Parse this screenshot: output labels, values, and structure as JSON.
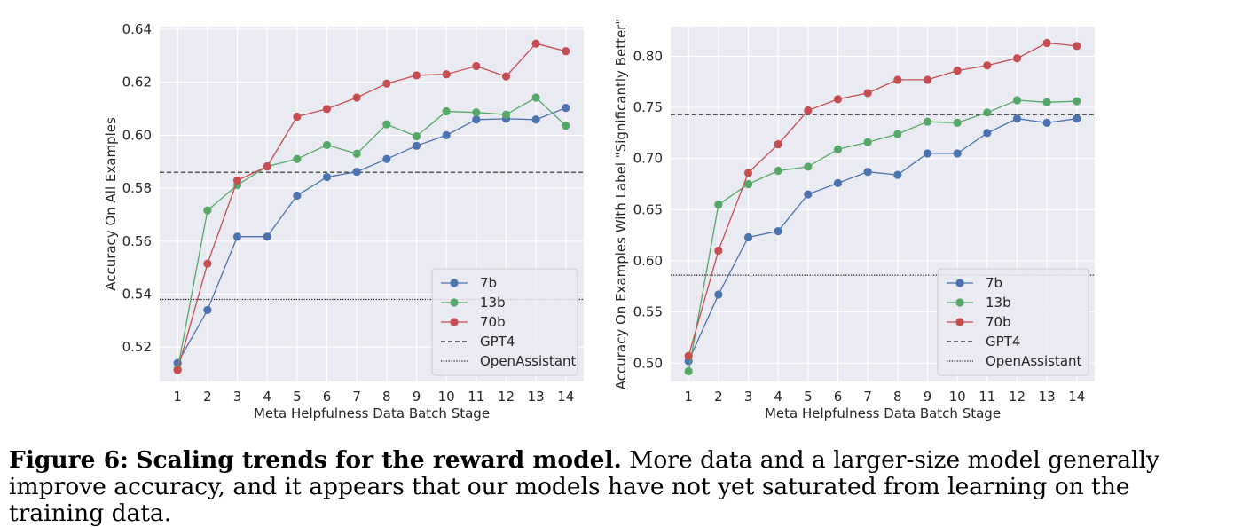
{
  "chart_data": [
    {
      "type": "line",
      "title": "",
      "xlabel": "Meta Helpfulness Data Batch Stage",
      "ylabel": "Accuracy On All Examples",
      "x": [
        1,
        2,
        3,
        4,
        5,
        6,
        7,
        8,
        9,
        10,
        11,
        12,
        13,
        14
      ],
      "xticks": [
        "1",
        "2",
        "3",
        "4",
        "5",
        "6",
        "7",
        "8",
        "9",
        "10",
        "11",
        "12",
        "13",
        "14"
      ],
      "xlim": [
        0.4,
        14.6
      ],
      "ylim": [
        0.507,
        0.641
      ],
      "yticks": [
        "0.52",
        "0.54",
        "0.56",
        "0.58",
        "0.60",
        "0.62",
        "0.64"
      ],
      "ytick_values": [
        0.52,
        0.54,
        0.56,
        0.58,
        0.6,
        0.62,
        0.64
      ],
      "grid": true,
      "legend_position": "lower-right",
      "series": [
        {
          "name": "7b",
          "color": "#4c72b0",
          "values": [
            0.514,
            0.534,
            0.5617,
            0.5617,
            0.5772,
            0.5842,
            0.5862,
            0.591,
            0.596,
            0.6,
            0.6059,
            0.6062,
            0.6059,
            0.6103
          ]
        },
        {
          "name": "13b",
          "color": "#55a868",
          "values": [
            0.5116,
            0.5716,
            0.5812,
            0.5882,
            0.591,
            0.5963,
            0.593,
            0.6041,
            0.5996,
            0.609,
            0.6086,
            0.6078,
            0.6142,
            0.6036
          ]
        },
        {
          "name": "70b",
          "color": "#c44e52",
          "values": [
            0.5113,
            0.5515,
            0.5829,
            0.5882,
            0.607,
            0.6099,
            0.6142,
            0.6195,
            0.6226,
            0.623,
            0.6261,
            0.6222,
            0.6346,
            0.6317
          ]
        }
      ],
      "reference_lines": [
        {
          "name": "GPT4",
          "style": "dashed",
          "value": 0.586
        },
        {
          "name": "OpenAssistant",
          "style": "dotted",
          "value": 0.538
        }
      ]
    },
    {
      "type": "line",
      "title": "",
      "xlabel": "Meta Helpfulness Data Batch Stage",
      "ylabel": "Accuracy On Examples With Label \"Significantly Better\"",
      "x": [
        1,
        2,
        3,
        4,
        5,
        6,
        7,
        8,
        9,
        10,
        11,
        12,
        13,
        14
      ],
      "xticks": [
        "1",
        "2",
        "3",
        "4",
        "5",
        "6",
        "7",
        "8",
        "9",
        "10",
        "11",
        "12",
        "13",
        "14"
      ],
      "xlim": [
        0.4,
        14.6
      ],
      "ylim": [
        0.482,
        0.829
      ],
      "yticks": [
        "0.50",
        "0.55",
        "0.60",
        "0.65",
        "0.70",
        "0.75",
        "0.80"
      ],
      "ytick_values": [
        0.5,
        0.55,
        0.6,
        0.65,
        0.7,
        0.75,
        0.8
      ],
      "grid": true,
      "legend_position": "lower-right",
      "series": [
        {
          "name": "7b",
          "color": "#4c72b0",
          "values": [
            0.502,
            0.567,
            0.623,
            0.629,
            0.665,
            0.676,
            0.687,
            0.684,
            0.705,
            0.705,
            0.725,
            0.739,
            0.735,
            0.739
          ]
        },
        {
          "name": "13b",
          "color": "#55a868",
          "values": [
            0.492,
            0.655,
            0.675,
            0.688,
            0.692,
            0.709,
            0.716,
            0.724,
            0.736,
            0.735,
            0.745,
            0.757,
            0.755,
            0.756
          ]
        },
        {
          "name": "70b",
          "color": "#c44e52",
          "values": [
            0.507,
            0.61,
            0.686,
            0.714,
            0.747,
            0.758,
            0.764,
            0.777,
            0.777,
            0.786,
            0.791,
            0.798,
            0.813,
            0.81
          ]
        }
      ],
      "reference_lines": [
        {
          "name": "GPT4",
          "style": "dashed",
          "value": 0.743
        },
        {
          "name": "OpenAssistant",
          "style": "dotted",
          "value": 0.586
        }
      ]
    }
  ],
  "caption": {
    "label": "Figure 6:",
    "title": "Scaling trends for the reward model.",
    "text": "More data and a larger-size model generally improve accuracy, and it appears that our models have not yet saturated from learning on the training data."
  }
}
